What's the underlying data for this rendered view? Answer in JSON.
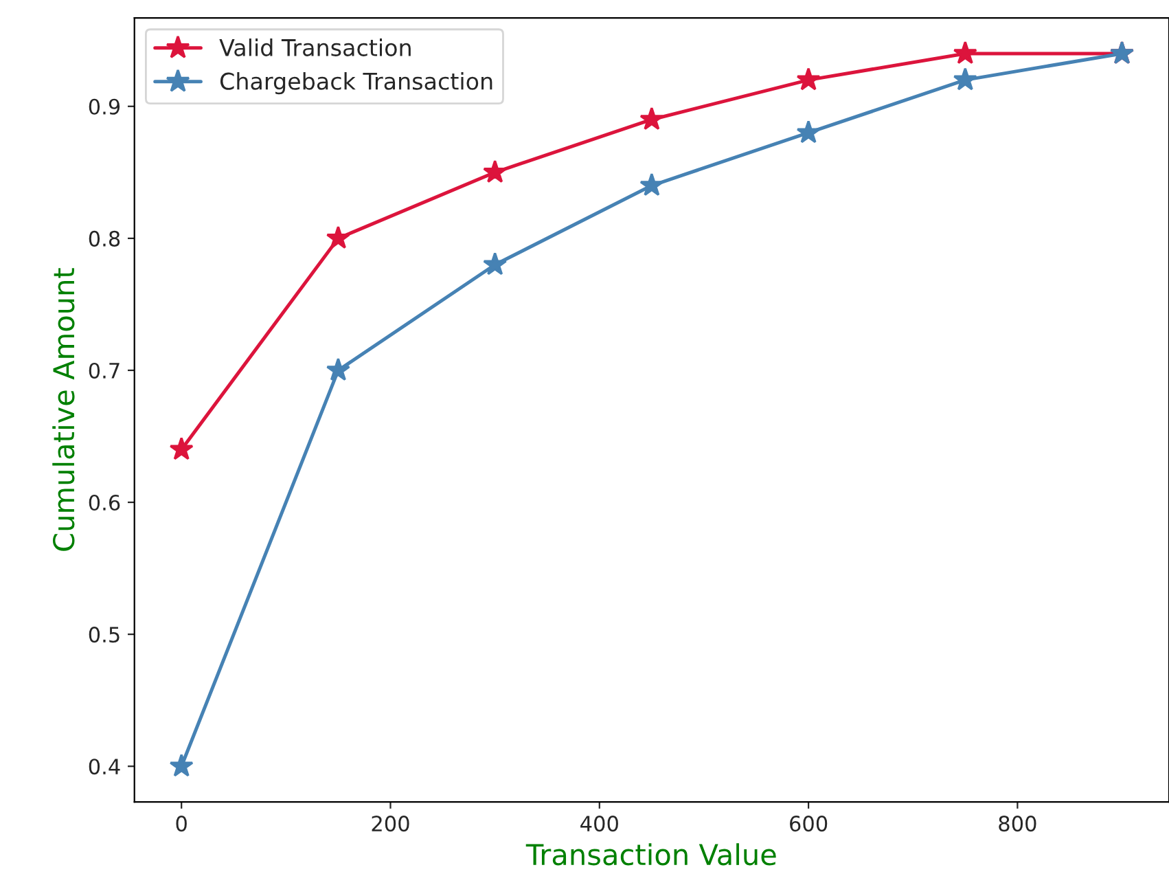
{
  "chart_data": {
    "type": "line",
    "xlabel": "Transaction Value",
    "ylabel": "Cumulative Amount",
    "x": [
      0,
      150,
      300,
      450,
      600,
      750,
      900
    ],
    "series": [
      {
        "name": "Valid Transaction",
        "color": "#dc143c",
        "values": [
          0.64,
          0.8,
          0.85,
          0.89,
          0.92,
          0.94,
          0.94
        ]
      },
      {
        "name": "Chargeback Transaction",
        "color": "#4682b4",
        "values": [
          0.4,
          0.7,
          0.78,
          0.84,
          0.88,
          0.92,
          0.94
        ]
      }
    ],
    "xlim": [
      -45,
      945
    ],
    "ylim": [
      0.373,
      0.967
    ],
    "xticks": [
      0,
      200,
      400,
      600,
      800
    ],
    "yticks": [
      0.4,
      0.5,
      0.6,
      0.7,
      0.8,
      0.9
    ],
    "marker": "star",
    "line_style": "solid",
    "legend": "top left",
    "grid": false
  }
}
